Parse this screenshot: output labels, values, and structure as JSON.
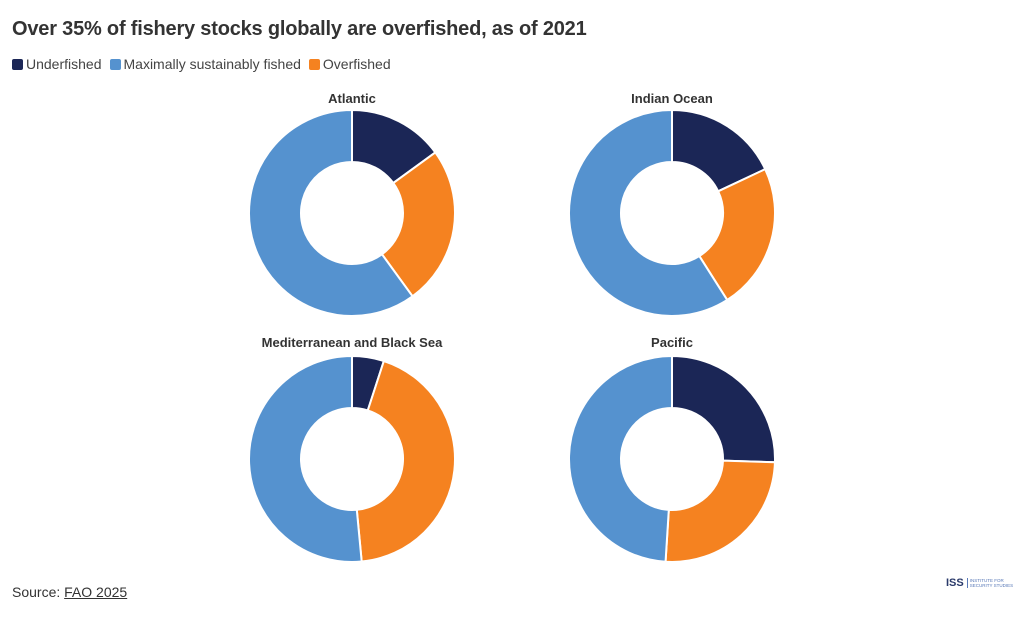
{
  "title": "Over 35% of fishery stocks globally are overfished, as of 2021",
  "legend": [
    {
      "label": "Underfished",
      "color": "#1b2656"
    },
    {
      "label": "Maximally sustainably fished",
      "color": "#5592cf"
    },
    {
      "label": "Overfished",
      "color": "#f58220"
    }
  ],
  "chart_data": [
    {
      "type": "pie",
      "variant": "donut",
      "title": "Atlantic",
      "categories": [
        "Underfished",
        "Overfished",
        "Maximally sustainably fished"
      ],
      "values": [
        15,
        25,
        60
      ]
    },
    {
      "type": "pie",
      "variant": "donut",
      "title": "Indian Ocean",
      "categories": [
        "Underfished",
        "Overfished",
        "Maximally sustainably fished"
      ],
      "values": [
        18,
        23,
        59
      ]
    },
    {
      "type": "pie",
      "variant": "donut",
      "title": "Mediterranean and Black Sea",
      "categories": [
        "Underfished",
        "Overfished",
        "Maximally sustainably fished"
      ],
      "values": [
        5,
        43.5,
        51.5
      ]
    },
    {
      "type": "pie",
      "variant": "donut",
      "title": "Pacific",
      "categories": [
        "Underfished",
        "Overfished",
        "Maximally sustainably fished"
      ],
      "values": [
        25.5,
        25.5,
        49
      ]
    }
  ],
  "source": {
    "prefix": "Source: ",
    "link": "FAO 2025"
  },
  "logo": {
    "name": "ISS",
    "text": "INSTITUTE FOR SECURITY STUDIES"
  }
}
